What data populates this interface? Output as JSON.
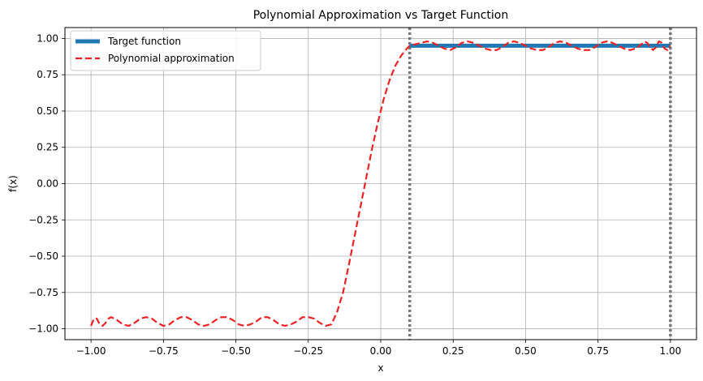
{
  "chart_data": {
    "type": "line",
    "title": "Polynomial Approximation vs Target Function",
    "xlabel": "x",
    "ylabel": "f(x)",
    "xlim": [
      -1.09,
      1.09
    ],
    "ylim": [
      -1.075,
      1.075
    ],
    "x_ticks": [
      -1.0,
      -0.75,
      -0.5,
      -0.25,
      0.0,
      0.25,
      0.5,
      0.75,
      1.0
    ],
    "x_tick_labels": [
      "−1.00",
      "−0.75",
      "−0.50",
      "−0.25",
      "0.00",
      "0.25",
      "0.50",
      "0.75",
      "1.00"
    ],
    "y_ticks": [
      -1.0,
      -0.75,
      -0.5,
      -0.25,
      0.0,
      0.25,
      0.5,
      0.75,
      1.0
    ],
    "y_tick_labels": [
      "−1.00",
      "−0.75",
      "−0.50",
      "−0.25",
      "0.00",
      "0.25",
      "0.50",
      "0.75",
      "1.00"
    ],
    "grid": true,
    "legend_position": "top-left",
    "vertical_lines": [
      0.1,
      1.0
    ],
    "series": [
      {
        "name": "Target function",
        "style": "solid",
        "color": "#1f77b4",
        "x": [
          0.1,
          1.0
        ],
        "y": [
          0.95,
          0.95
        ]
      },
      {
        "name": "Polynomial approximation",
        "style": "dashed",
        "color": "#ee2222",
        "x": [
          -1.0,
          -0.99,
          -0.98,
          -0.97,
          -0.96,
          -0.95,
          -0.94,
          -0.93,
          -0.91,
          -0.89,
          -0.87,
          -0.85,
          -0.83,
          -0.81,
          -0.79,
          -0.77,
          -0.75,
          -0.73,
          -0.71,
          -0.69,
          -0.67,
          -0.65,
          -0.63,
          -0.61,
          -0.59,
          -0.57,
          -0.55,
          -0.53,
          -0.51,
          -0.49,
          -0.47,
          -0.45,
          -0.43,
          -0.41,
          -0.39,
          -0.37,
          -0.35,
          -0.33,
          -0.31,
          -0.29,
          -0.27,
          -0.25,
          -0.23,
          -0.21,
          -0.19,
          -0.17,
          -0.15,
          -0.13,
          -0.11,
          -0.09,
          -0.07,
          -0.05,
          -0.03,
          -0.01,
          0.0,
          0.01,
          0.03,
          0.05,
          0.07,
          0.09,
          0.1,
          0.12,
          0.14,
          0.16,
          0.18,
          0.2,
          0.22,
          0.24,
          0.26,
          0.28,
          0.3,
          0.32,
          0.34,
          0.36,
          0.38,
          0.4,
          0.42,
          0.44,
          0.46,
          0.48,
          0.5,
          0.52,
          0.54,
          0.56,
          0.58,
          0.6,
          0.62,
          0.64,
          0.66,
          0.68,
          0.7,
          0.72,
          0.74,
          0.76,
          0.78,
          0.8,
          0.82,
          0.84,
          0.86,
          0.88,
          0.9,
          0.91,
          0.92,
          0.93,
          0.94,
          0.95,
          0.96,
          0.97,
          0.98,
          0.99,
          1.0
        ],
        "y": [
          -0.98,
          -0.93,
          -0.93,
          -0.97,
          -0.98,
          -0.96,
          -0.93,
          -0.92,
          -0.94,
          -0.97,
          -0.98,
          -0.96,
          -0.93,
          -0.92,
          -0.93,
          -0.96,
          -0.98,
          -0.97,
          -0.94,
          -0.92,
          -0.92,
          -0.94,
          -0.97,
          -0.98,
          -0.97,
          -0.94,
          -0.92,
          -0.92,
          -0.94,
          -0.97,
          -0.98,
          -0.97,
          -0.95,
          -0.92,
          -0.92,
          -0.94,
          -0.97,
          -0.98,
          -0.97,
          -0.95,
          -0.92,
          -0.92,
          -0.93,
          -0.96,
          -0.98,
          -0.97,
          -0.88,
          -0.75,
          -0.56,
          -0.36,
          -0.16,
          0.04,
          0.24,
          0.42,
          0.5,
          0.58,
          0.71,
          0.81,
          0.88,
          0.93,
          0.95,
          0.96,
          0.97,
          0.98,
          0.97,
          0.95,
          0.93,
          0.92,
          0.94,
          0.97,
          0.98,
          0.97,
          0.95,
          0.93,
          0.92,
          0.92,
          0.94,
          0.97,
          0.98,
          0.97,
          0.95,
          0.93,
          0.92,
          0.92,
          0.94,
          0.97,
          0.98,
          0.97,
          0.95,
          0.93,
          0.92,
          0.92,
          0.94,
          0.97,
          0.98,
          0.97,
          0.95,
          0.93,
          0.92,
          0.93,
          0.96,
          0.98,
          0.97,
          0.94,
          0.92,
          0.94,
          0.98,
          0.97,
          0.93,
          0.92,
          0.95
        ]
      }
    ]
  }
}
